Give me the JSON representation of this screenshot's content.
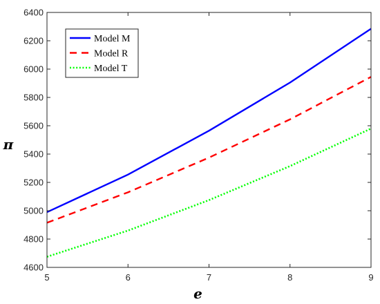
{
  "chart_data": {
    "type": "line",
    "xlabel": "e",
    "ylabel": "π",
    "xlim": [
      5,
      9
    ],
    "ylim": [
      4600,
      6400
    ],
    "x_ticks": [
      5,
      6,
      7,
      8,
      9
    ],
    "y_ticks": [
      4600,
      4800,
      5000,
      5200,
      5400,
      5600,
      5800,
      6000,
      6200,
      6400
    ],
    "x": [
      5,
      6,
      7,
      8,
      9
    ],
    "grid": false,
    "legend_position": "top-left",
    "series": [
      {
        "name": "Model M",
        "color": "#0000ff",
        "line_style": "solid",
        "values": [
          4990,
          5255,
          5565,
          5905,
          6285
        ]
      },
      {
        "name": "Model R",
        "color": "#ff0000",
        "line_style": "dashed",
        "values": [
          4915,
          5130,
          5375,
          5645,
          5945
        ]
      },
      {
        "name": "Model T",
        "color": "#00ff00",
        "line_style": "dotted",
        "values": [
          4675,
          4860,
          5075,
          5315,
          5580
        ]
      }
    ]
  }
}
